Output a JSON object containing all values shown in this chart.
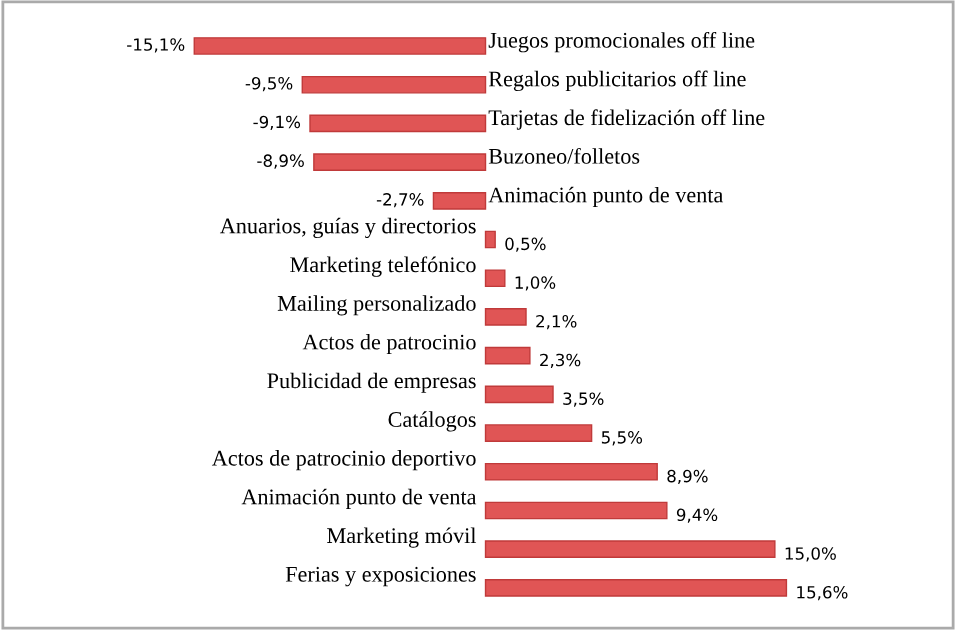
{
  "chart_data": {
    "type": "bar",
    "orientation": "horizontal",
    "categories": [
      "Juegos promocionales off line",
      "Regalos publicitarios off line",
      "Tarjetas de fidelización off line",
      "Buzoneo/folletos",
      "Animación punto de venta",
      "Anuarios, guías y directorios",
      "Marketing telefónico",
      "Mailing personalizado",
      "Actos de patrocinio",
      "Publicidad de empresas",
      "Catálogos",
      "Actos de patrocinio deportivo",
      "Animación punto de venta",
      "Marketing móvil",
      "Ferias y exposiciones"
    ],
    "values": [
      -15.1,
      -9.5,
      -9.1,
      -8.9,
      -2.7,
      0.5,
      1.0,
      2.1,
      2.3,
      3.5,
      5.5,
      8.9,
      9.4,
      15.0,
      15.6
    ],
    "value_labels": [
      "-15,1%",
      "-9,5%",
      "-9,1%",
      "-8,9%",
      "-2,7%",
      "0,5%",
      "1,0%",
      "2,1%",
      "2,3%",
      "3,5%",
      "5,5%",
      "8,9%",
      "9,4%",
      "15,0%",
      "15,6%"
    ],
    "color": "#e05555"
  }
}
